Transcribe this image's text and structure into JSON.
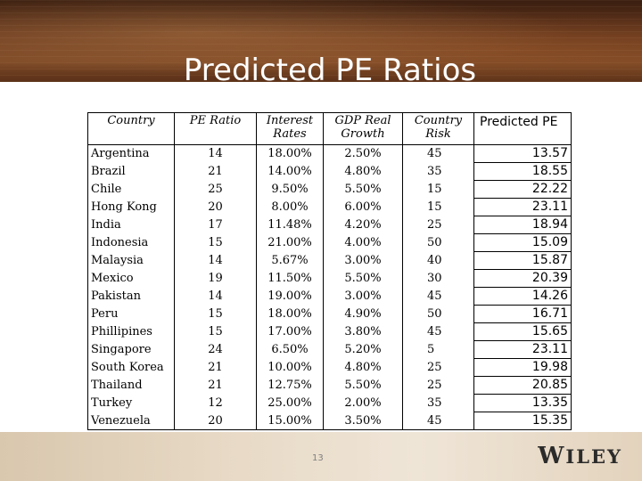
{
  "slide": {
    "title": "Predicted PE Ratios",
    "page_number": "13",
    "logo_text_first": "W",
    "logo_text_rest": "ILEY"
  },
  "table": {
    "headers": {
      "country": "Country",
      "pe_ratio": "PE Ratio",
      "interest_line1": "Interest",
      "interest_line2": "Rates",
      "gdp_line1": "GDP Real",
      "gdp_line2": "Growth",
      "risk_line1": "Country",
      "risk_line2": "Risk",
      "predicted": "Predicted PE"
    },
    "rows": [
      {
        "country": "Argentina",
        "pe": "14",
        "rate": "18.00%",
        "gdp": "2.50%",
        "risk": "45",
        "pred": "13.57"
      },
      {
        "country": "Brazil",
        "pe": "21",
        "rate": "14.00%",
        "gdp": "4.80%",
        "risk": "35",
        "pred": "18.55"
      },
      {
        "country": "Chile",
        "pe": "25",
        "rate": "9.50%",
        "gdp": "5.50%",
        "risk": "15",
        "pred": "22.22"
      },
      {
        "country": "Hong Kong",
        "pe": "20",
        "rate": "8.00%",
        "gdp": "6.00%",
        "risk": "15",
        "pred": "23.11"
      },
      {
        "country": "India",
        "pe": "17",
        "rate": "11.48%",
        "gdp": "4.20%",
        "risk": "25",
        "pred": "18.94"
      },
      {
        "country": "Indonesia",
        "pe": "15",
        "rate": "21.00%",
        "gdp": "4.00%",
        "risk": "50",
        "pred": "15.09"
      },
      {
        "country": "Malaysia",
        "pe": "14",
        "rate": "5.67%",
        "gdp": "3.00%",
        "risk": "40",
        "pred": "15.87"
      },
      {
        "country": "Mexico",
        "pe": "19",
        "rate": "11.50%",
        "gdp": "5.50%",
        "risk": "30",
        "pred": "20.39"
      },
      {
        "country": "Pakistan",
        "pe": "14",
        "rate": "19.00%",
        "gdp": "3.00%",
        "risk": "45",
        "pred": "14.26"
      },
      {
        "country": "Peru",
        "pe": "15",
        "rate": "18.00%",
        "gdp": "4.90%",
        "risk": "50",
        "pred": "16.71"
      },
      {
        "country": "Phillipines",
        "pe": "15",
        "rate": "17.00%",
        "gdp": "3.80%",
        "risk": "45",
        "pred": "15.65"
      },
      {
        "country": "Singapore",
        "pe": "24",
        "rate": "6.50%",
        "gdp": "5.20%",
        "risk": "5",
        "pred": "23.11"
      },
      {
        "country": "South Korea",
        "pe": "21",
        "rate": "10.00%",
        "gdp": "4.80%",
        "risk": "25",
        "pred": "19.98"
      },
      {
        "country": "Thailand",
        "pe": "21",
        "rate": "12.75%",
        "gdp": "5.50%",
        "risk": "25",
        "pred": "20.85"
      },
      {
        "country": "Turkey",
        "pe": "12",
        "rate": "25.00%",
        "gdp": "2.00%",
        "risk": "35",
        "pred": "13.35"
      },
      {
        "country": "Venezuela",
        "pe": "20",
        "rate": "15.00%",
        "gdp": "3.50%",
        "risk": "45",
        "pred": "15.35"
      }
    ]
  }
}
